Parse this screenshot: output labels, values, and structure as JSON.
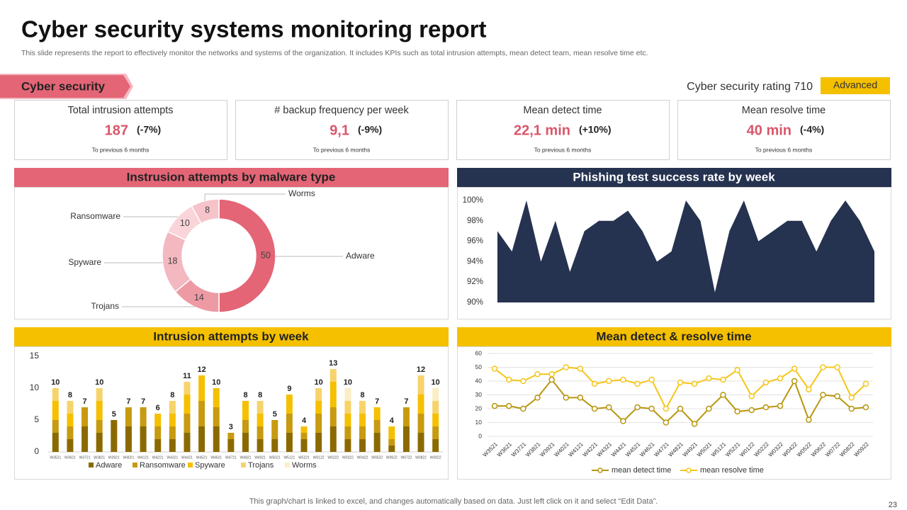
{
  "header": {
    "title": "Cyber security systems monitoring report",
    "subtitle": "This slide represents the report to effectively  monitor the networks and systems of the organization. It includes KPIs such as total intrusion attempts, mean detect team, mean resolve time etc."
  },
  "section": "Cyber security",
  "rating": {
    "text": "Cyber security rating 710",
    "badge": "Advanced"
  },
  "kpis": [
    {
      "title": "Total intrusion attempts",
      "value": "187",
      "change": "(-7%)",
      "note": "To previous 6 months"
    },
    {
      "title": "# backup frequency per week",
      "value": "9,1",
      "change": "(-9%)",
      "note": "To previous 6 months"
    },
    {
      "title": "Mean detect time",
      "value": "22,1 min",
      "change": "(+10%)",
      "note": "To previous 6 months"
    },
    {
      "title": "Mean resolve time",
      "value": "40 min",
      "change": "(-4%)",
      "note": "To previous 6 months"
    }
  ],
  "chart_data": [
    {
      "type": "donut",
      "title": "Instrusion attempts by malware type",
      "categories": [
        "Adware",
        "Trojans",
        "Spyware",
        "Ransomware",
        "Worms"
      ],
      "values": [
        50,
        14,
        18,
        10,
        8
      ],
      "colors": [
        "#e36576",
        "#ee9aa5",
        "#f4b8c0",
        "#f9d5da",
        "#f6c3ca"
      ]
    },
    {
      "type": "area",
      "title": "Phishing test success rate by week",
      "values": [
        97,
        95,
        100,
        94,
        98,
        93,
        97,
        98,
        98,
        99,
        97,
        94,
        95,
        100,
        98,
        91,
        97,
        100,
        96,
        97,
        98,
        98,
        95,
        98,
        100,
        98,
        95
      ],
      "color": "#253250",
      "ylim": [
        90,
        100
      ],
      "yticks": [
        {
          "value": 90,
          "label": "90%"
        },
        {
          "value": 92,
          "label": "92%"
        },
        {
          "value": 94,
          "label": "94%"
        },
        {
          "value": 96,
          "label": "96%"
        },
        {
          "value": 98,
          "label": "98%"
        },
        {
          "value": 100,
          "label": "100%"
        }
      ]
    },
    {
      "type": "stacked-bar",
      "title": "Intrusion attempts by week",
      "categories": [
        "W3521",
        "W3621",
        "W3721",
        "W3821",
        "W3921",
        "W4021",
        "W4121",
        "W4221",
        "W4321",
        "W4421",
        "W4521",
        "W4621",
        "W4721",
        "W4821",
        "W4921",
        "W5021",
        "W5121",
        "W5221",
        "W0122",
        "W0222",
        "W0322",
        "W0422",
        "W0522",
        "W0622",
        "W0722",
        "W0822",
        "W0922"
      ],
      "series": [
        {
          "name": "Adware",
          "color": "#8a6a00",
          "values": [
            3,
            2,
            4,
            3,
            5,
            4,
            4,
            2,
            2,
            3,
            4,
            4,
            2,
            3,
            2,
            2,
            3,
            2,
            3,
            4,
            2,
            2,
            3,
            1,
            4,
            3,
            2
          ]
        },
        {
          "name": "Ransomware",
          "color": "#c79a10",
          "values": [
            2,
            2,
            3,
            2,
            0,
            3,
            3,
            2,
            2,
            3,
            4,
            3,
            1,
            2,
            2,
            3,
            3,
            1,
            3,
            3,
            2,
            2,
            2,
            1,
            3,
            3,
            2
          ]
        },
        {
          "name": "Spyware",
          "color": "#f5c000",
          "values": [
            3,
            2,
            0,
            3,
            0,
            0,
            0,
            2,
            2,
            3,
            4,
            3,
            0,
            3,
            2,
            0,
            3,
            1,
            2,
            4,
            2,
            2,
            2,
            2,
            0,
            3,
            2
          ]
        },
        {
          "name": "Trojans",
          "color": "#f7d36b",
          "values": [
            2,
            2,
            0,
            2,
            0,
            0,
            0,
            0,
            2,
            2,
            0,
            0,
            0,
            0,
            2,
            0,
            0,
            0,
            2,
            2,
            2,
            2,
            0,
            0,
            0,
            3,
            2
          ]
        },
        {
          "name": "Worms",
          "color": "#fbeec5",
          "values": [
            0,
            0,
            0,
            0,
            0,
            0,
            0,
            0,
            0,
            0,
            0,
            0,
            0,
            0,
            0,
            0,
            0,
            0,
            0,
            0,
            2,
            0,
            0,
            0,
            0,
            0,
            2
          ]
        }
      ],
      "totals": [
        10,
        8,
        7,
        10,
        5,
        7,
        7,
        6,
        8,
        11,
        12,
        10,
        3,
        8,
        8,
        5,
        9,
        4,
        10,
        13,
        10,
        8,
        7,
        4,
        7,
        12,
        10
      ],
      "ylim": [
        0,
        15
      ],
      "yticks": [
        0,
        5,
        10,
        15
      ],
      "legend": "bottom"
    },
    {
      "type": "line",
      "title": "Mean detect & resolve time",
      "categories": [
        "W3521",
        "W3621",
        "W3721",
        "W3821",
        "W3921",
        "W4021",
        "W4121",
        "W4221",
        "W4321",
        "W4421",
        "W4521",
        "W4621",
        "W4721",
        "W4821",
        "W4921",
        "W5021",
        "W5121",
        "W5221",
        "W0122",
        "W0222",
        "W0322",
        "W0422",
        "W0522",
        "W0622",
        "W0722",
        "W0822",
        "W0922"
      ],
      "series": [
        {
          "name": "mean detect time",
          "color": "#b8960c",
          "values": [
            22,
            22,
            20,
            28,
            41,
            28,
            28,
            20,
            21,
            11,
            21,
            20,
            10,
            20,
            9,
            20,
            30,
            18,
            19,
            21,
            22,
            40,
            12,
            30,
            29,
            20,
            21
          ]
        },
        {
          "name": "mean resolve time",
          "color": "#f5c518",
          "values": [
            49,
            41,
            40,
            45,
            45,
            50,
            49,
            38,
            40,
            41,
            38,
            41,
            20,
            39,
            38,
            42,
            41,
            48,
            29,
            39,
            42,
            49,
            34,
            50,
            50,
            28,
            38
          ]
        }
      ],
      "ylim": [
        0,
        60
      ],
      "yticks": [
        0,
        10,
        20,
        30,
        40,
        50,
        60
      ],
      "grid": true,
      "legend": "bottom"
    }
  ],
  "footer": "This graph/chart is linked to excel, and changes automatically based on data. Just left click on it and select “Edit Data”.",
  "page_number": "23"
}
